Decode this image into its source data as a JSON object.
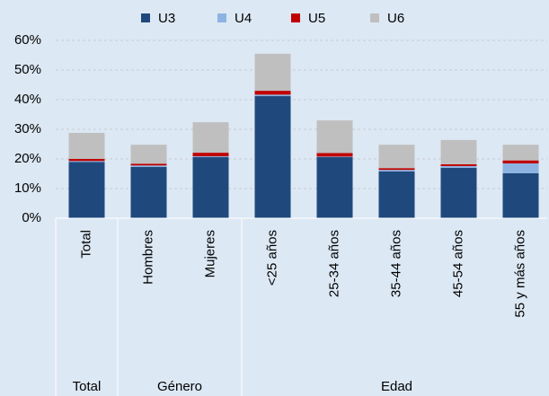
{
  "chart_data": {
    "type": "stacked_bar",
    "categories": [
      "Total",
      "Hombres",
      "Mujeres",
      "<25 años",
      "25-34 años",
      "35-44 años",
      "45-54 años",
      "55 y más años"
    ],
    "groups": [
      {
        "label": "Total",
        "span": 1
      },
      {
        "label": "Género",
        "span": 2
      },
      {
        "label": "Edad",
        "span": 5
      }
    ],
    "series": [
      {
        "name": "U3",
        "color": "#1f497d",
        "values": [
          19.0,
          17.3,
          20.6,
          41.2,
          20.6,
          15.8,
          17.0,
          15.2
        ]
      },
      {
        "name": "U4",
        "color": "#8db3e2",
        "values": [
          0.3,
          0.5,
          0.3,
          0.5,
          0.2,
          0.5,
          0.6,
          3.3
        ]
      },
      {
        "name": "U5",
        "color": "#c00000",
        "values": [
          0.7,
          0.6,
          1.2,
          1.3,
          1.2,
          0.6,
          0.6,
          1.0
        ]
      },
      {
        "name": "U6",
        "color": "#bfbfbf",
        "values": [
          8.8,
          6.4,
          10.3,
          12.5,
          11.0,
          7.9,
          8.2,
          5.3
        ]
      }
    ],
    "ylim": [
      0,
      60
    ],
    "yticks": [
      {
        "value": 0,
        "label": "0%"
      },
      {
        "value": 10,
        "label": "10%"
      },
      {
        "value": 20,
        "label": "20%"
      },
      {
        "value": 30,
        "label": "30%"
      },
      {
        "value": 40,
        "label": "40%"
      },
      {
        "value": 50,
        "label": "50%"
      },
      {
        "value": 60,
        "label": "60%"
      }
    ],
    "grid": true,
    "legend": "top"
  }
}
